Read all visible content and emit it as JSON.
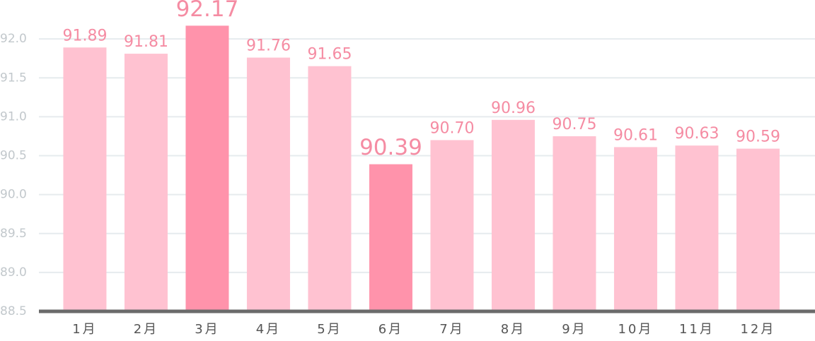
{
  "chart_data": {
    "type": "bar",
    "categories": [
      "1月",
      "2月",
      "3月",
      "4月",
      "5月",
      "6月",
      "7月",
      "8月",
      "9月",
      "10月",
      "11月",
      "12月"
    ],
    "values": [
      91.89,
      91.81,
      92.17,
      91.76,
      91.65,
      90.39,
      90.7,
      90.96,
      90.75,
      90.61,
      90.63,
      90.59
    ],
    "value_labels": [
      "91.89",
      "91.81",
      "92.17",
      "91.76",
      "91.65",
      "90.39",
      "90.70",
      "90.96",
      "90.75",
      "90.61",
      "90.63",
      "90.59"
    ],
    "colors": [
      "#ffc2d1",
      "#ffc2d1",
      "#ff93ab",
      "#ffc2d1",
      "#ffc2d1",
      "#ff93ab",
      "#ffc2d1",
      "#ffc2d1",
      "#ffc2d1",
      "#ffc2d1",
      "#ffc2d1",
      "#ffc2d1"
    ],
    "label_color": "#f58ca3",
    "ylim": [
      88.5,
      92.5
    ],
    "yticks": [
      88.5,
      {
        "value": 89,
        "label": "89.0"
      },
      89.5,
      {
        "value": 90,
        "label": "90.0"
      },
      90.5,
      {
        "value": 91,
        "label": "91.0"
      },
      91.5,
      {
        "value": 92,
        "label": "92.0"
      }
    ],
    "grid": true
  }
}
